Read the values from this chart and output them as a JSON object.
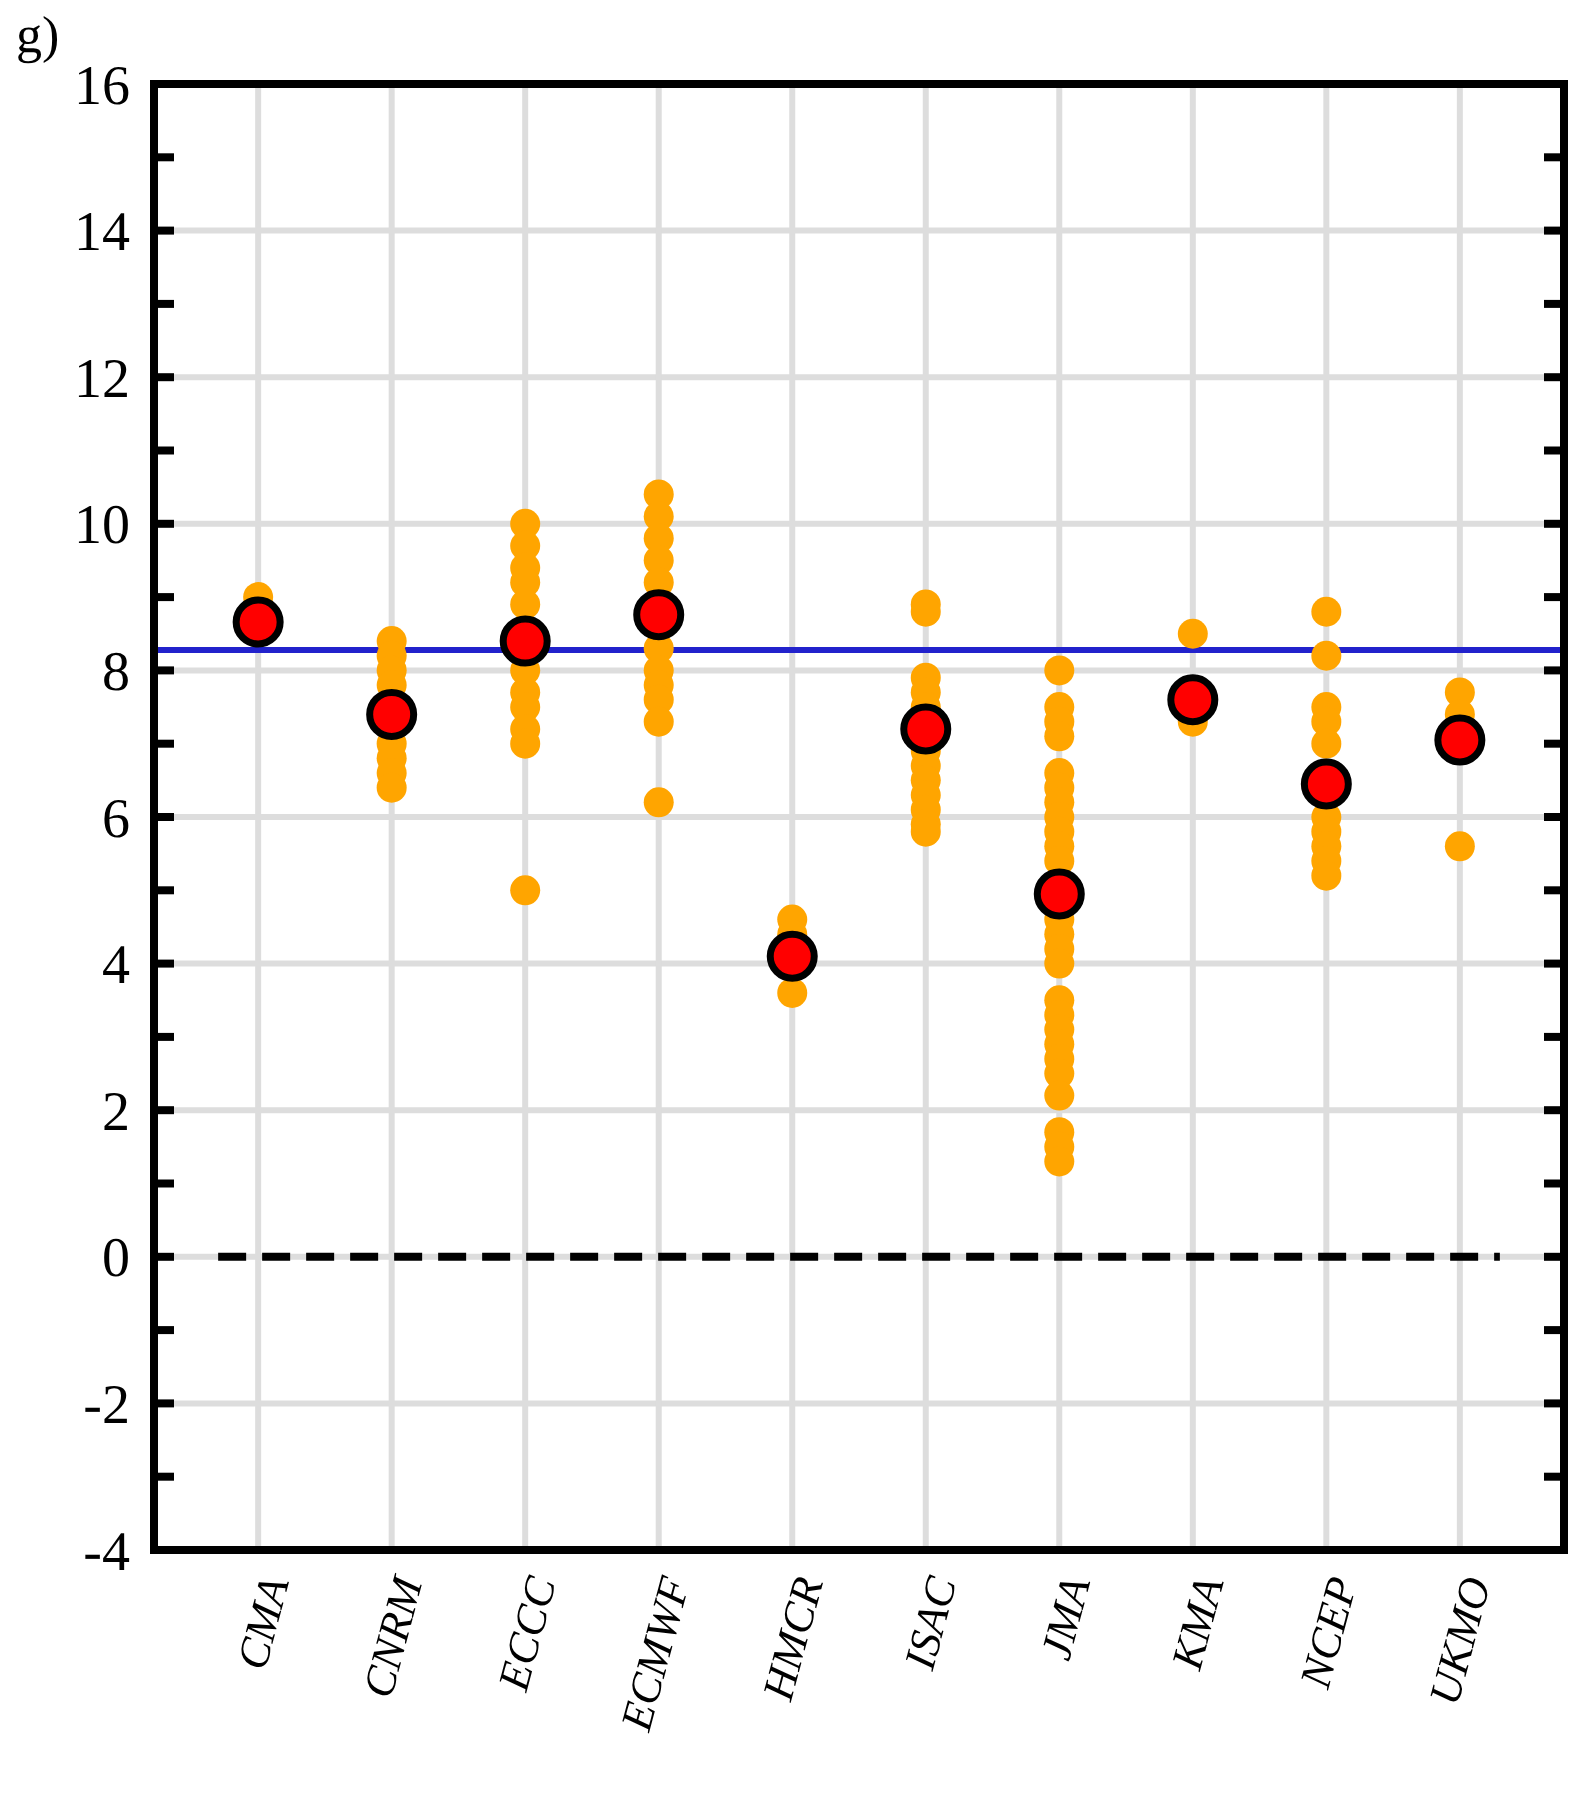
{
  "chart_data": {
    "type": "scatter",
    "title": "g)",
    "categories": [
      "CMA",
      "CNRM",
      "ECCC",
      "ECMWF",
      "HMCR",
      "ISAC",
      "JMA",
      "KMA",
      "NCEP",
      "UKMO"
    ],
    "ylim": [
      -4,
      16
    ],
    "yticks": [
      -4,
      {
        "value": -3,
        "label": null
      },
      -2,
      {
        "value": -1,
        "label": null
      },
      0,
      {
        "value": 1,
        "label": null
      },
      2,
      {
        "value": 3,
        "label": null
      },
      4,
      {
        "value": 5,
        "label": null
      },
      6,
      {
        "value": 7,
        "label": null
      },
      8,
      {
        "value": 9,
        "label": null
      },
      10,
      {
        "value": 11,
        "label": null
      },
      12,
      {
        "value": 13,
        "label": null
      },
      14,
      {
        "value": 15,
        "label": null
      },
      16
    ],
    "grid": true,
    "marker": "circle",
    "series": [
      {
        "color": "#ffa500",
        "x": [
          "CMA",
          "CNRM",
          "CNRM",
          "CNRM",
          "CNRM",
          "CNRM",
          "CNRM",
          "CNRM",
          "CNRM",
          "ECCC",
          "ECCC",
          "ECCC",
          "ECCC",
          "ECCC",
          "ECCC",
          "ECCC",
          "ECCC",
          "ECCC",
          "ECCC",
          "ECCC",
          "ECMWF",
          "ECMWF",
          "ECMWF",
          "ECMWF",
          "ECMWF",
          "ECMWF",
          "ECMWF",
          "ECMWF",
          "ECMWF",
          "ECMWF",
          "ECMWF",
          "HMCR",
          "HMCR",
          "HMCR",
          "ISAC",
          "ISAC",
          "ISAC",
          "ISAC",
          "ISAC",
          "ISAC",
          "ISAC",
          "ISAC",
          "ISAC",
          "ISAC",
          "ISAC",
          "ISAC",
          "JMA",
          "JMA",
          "JMA",
          "JMA",
          "JMA",
          "JMA",
          "JMA",
          "JMA",
          "JMA",
          "JMA",
          "JMA",
          "JMA",
          "JMA",
          "JMA",
          "JMA",
          "JMA",
          "JMA",
          "JMA",
          "JMA",
          "JMA",
          "JMA",
          "JMA",
          "JMA",
          "JMA",
          "JMA",
          "KMA",
          "KMA",
          "NCEP",
          "NCEP",
          "NCEP",
          "NCEP",
          "NCEP",
          "NCEP",
          "NCEP",
          "NCEP",
          "NCEP",
          "NCEP",
          "UKMO",
          "UKMO",
          "UKMO"
        ],
        "values": [
          9.0,
          8.4,
          8.2,
          8.0,
          7.8,
          7.0,
          6.8,
          6.6,
          6.4,
          10.0,
          9.7,
          9.4,
          9.2,
          8.9,
          8.0,
          7.7,
          7.5,
          7.2,
          7.0,
          5.0,
          10.4,
          10.1,
          9.8,
          9.5,
          9.2,
          8.3,
          8.0,
          7.8,
          7.6,
          7.3,
          6.2,
          4.6,
          4.4,
          3.6,
          8.9,
          8.8,
          7.9,
          7.7,
          7.5,
          6.9,
          6.7,
          6.5,
          6.3,
          6.1,
          5.9,
          5.8,
          8.0,
          7.5,
          7.3,
          7.1,
          6.6,
          6.4,
          6.2,
          6.0,
          5.8,
          5.6,
          5.4,
          4.6,
          4.4,
          4.2,
          4.0,
          3.5,
          3.3,
          3.1,
          2.9,
          2.7,
          2.5,
          2.2,
          1.7,
          1.5,
          1.3,
          8.5,
          7.3,
          8.8,
          8.2,
          7.5,
          7.3,
          7.0,
          6.0,
          5.8,
          5.6,
          5.4,
          5.2,
          7.7,
          7.4,
          5.6
        ]
      },
      {
        "color": "#ff0000",
        "values": [
          8.66,
          7.4,
          8.4,
          8.76,
          4.1,
          7.2,
          4.95,
          7.6,
          6.45,
          7.05
        ]
      }
    ],
    "ref_lines": [
      {
        "axis": "y",
        "value": 8.28,
        "color": "#2222cc",
        "line_style": "solid"
      },
      {
        "axis": "y",
        "value": 0,
        "color": "#000000",
        "line_style": "dashed"
      }
    ]
  }
}
